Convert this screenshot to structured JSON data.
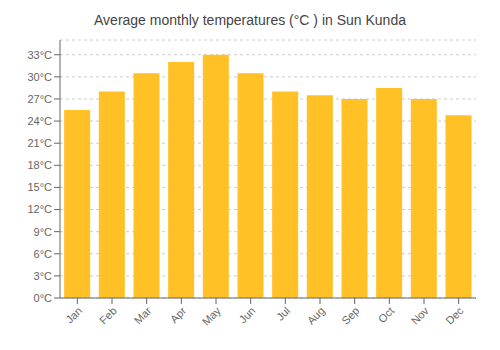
{
  "chart_data": {
    "type": "bar",
    "title": "Average monthly temperatures (°C ) in Sun Kunda",
    "categories": [
      "Jan",
      "Feb",
      "Mar",
      "Apr",
      "May",
      "Jun",
      "Jul",
      "Aug",
      "Sep",
      "Oct",
      "Nov",
      "Dec"
    ],
    "values": [
      25.5,
      28.0,
      30.5,
      32.0,
      33.0,
      30.5,
      28.0,
      27.5,
      27.0,
      28.5,
      27.0,
      24.8
    ],
    "color": "#FFC125",
    "ylim": [
      0,
      35
    ],
    "yticks": [
      {
        "value": 0,
        "label": "0°C"
      },
      {
        "value": 3,
        "label": "3°C"
      },
      {
        "value": 6,
        "label": "6°C"
      },
      {
        "value": 9,
        "label": "9°C"
      },
      {
        "value": 12,
        "label": "12°C"
      },
      {
        "value": 15,
        "label": "15°C"
      },
      {
        "value": 18,
        "label": "18°C"
      },
      {
        "value": 21,
        "label": "21°C"
      },
      {
        "value": 24,
        "label": "24°C"
      },
      {
        "value": 27,
        "label": "27°C"
      },
      {
        "value": 30,
        "label": "30°C"
      },
      {
        "value": 33,
        "label": "33°C"
      }
    ],
    "grid": true
  }
}
